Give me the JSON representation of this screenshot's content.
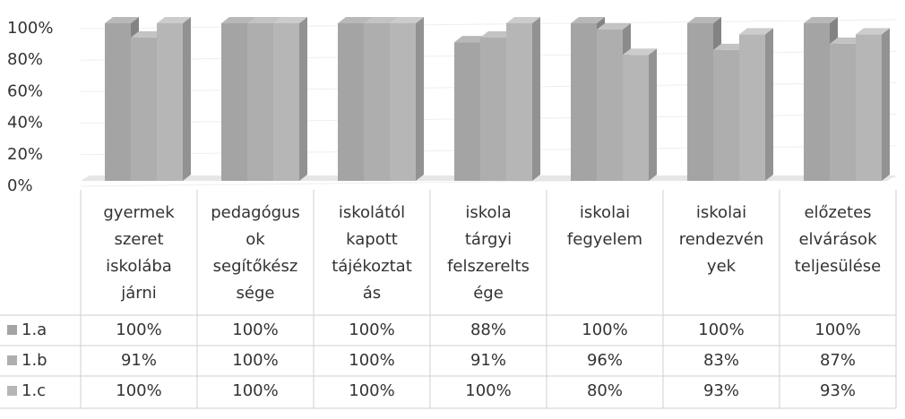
{
  "chart_data": {
    "type": "bar3d",
    "categories": [
      [
        "gyermek",
        "szeret",
        "iskolába",
        "járni"
      ],
      [
        "pedagógus",
        "ok",
        "segítőkész",
        "sége"
      ],
      [
        "iskolától",
        "kapott",
        "tájékoztat",
        "ás"
      ],
      [
        "iskola",
        "tárgyi",
        "felszerelts",
        "ége"
      ],
      [
        "iskolai",
        "fegyelem"
      ],
      [
        "iskolai",
        "rendezvén",
        "yek"
      ],
      [
        "előzetes",
        "elvárások",
        "teljesülése"
      ]
    ],
    "series": [
      {
        "name": "1.a",
        "color": "#a4a4a4",
        "values": [
          100,
          100,
          100,
          88,
          100,
          100,
          100
        ],
        "value_labels": [
          "100%",
          "100%",
          "100%",
          "88%",
          "100%",
          "100%",
          "100%"
        ]
      },
      {
        "name": "1.b",
        "color": "#aeaeae",
        "values": [
          91,
          100,
          100,
          91,
          96,
          83,
          87
        ],
        "value_labels": [
          "91%",
          "100%",
          "100%",
          "91%",
          "96%",
          "83%",
          "87%"
        ]
      },
      {
        "name": "1.c",
        "color": "#b6b6b6",
        "values": [
          100,
          100,
          100,
          100,
          80,
          93,
          93
        ],
        "value_labels": [
          "100%",
          "100%",
          "100%",
          "100%",
          "80%",
          "93%",
          "93%"
        ]
      }
    ],
    "ylim": [
      0,
      100
    ],
    "yticks": [
      {
        "value": 0,
        "label": "0%"
      },
      {
        "value": 20,
        "label": "20%"
      },
      {
        "value": 40,
        "label": "40%"
      },
      {
        "value": 60,
        "label": "60%"
      },
      {
        "value": 80,
        "label": "80%"
      },
      {
        "value": 100,
        "label": "100%"
      }
    ]
  }
}
